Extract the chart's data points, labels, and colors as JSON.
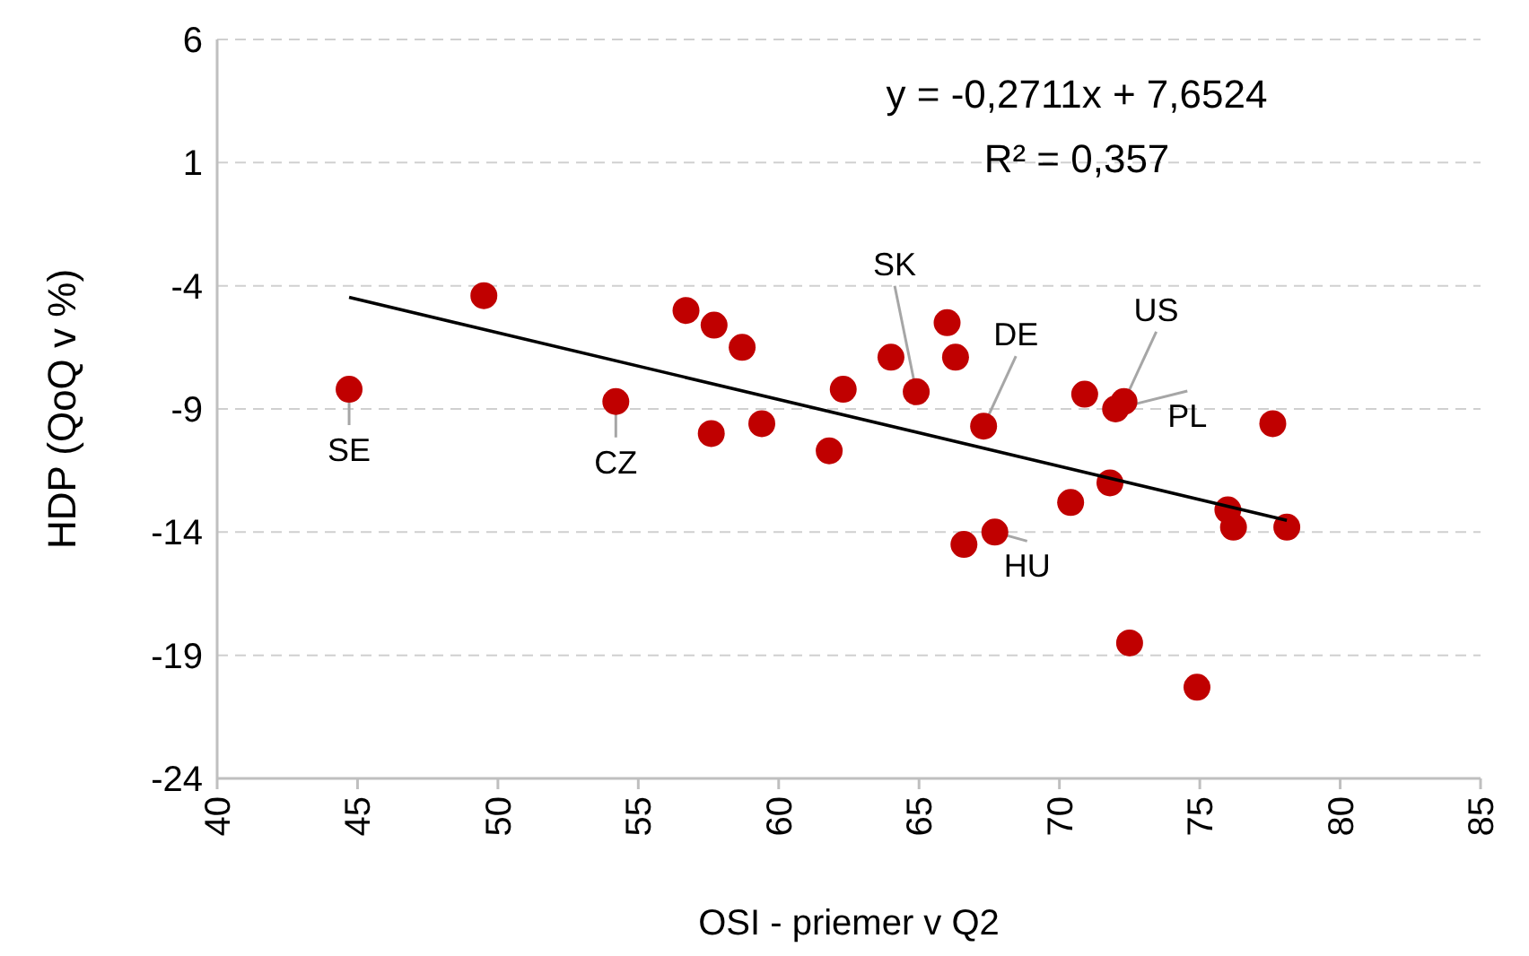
{
  "chart_data": {
    "type": "scatter",
    "xlabel": "OSI - priemer v Q2",
    "ylabel": "HDP (QoQ v %)",
    "xlim": [
      40,
      85
    ],
    "xticks": [
      40,
      45,
      50,
      55,
      60,
      65,
      70,
      75,
      80,
      85
    ],
    "ylim": [
      -24,
      6
    ],
    "yticks": [
      -24,
      -19,
      -14,
      -9,
      -4,
      1,
      6
    ],
    "grid": "y",
    "marker": "circle",
    "series": [
      {
        "color": "#c00000",
        "x": [
          44.7,
          49.5,
          54.2,
          56.7,
          57.7,
          58.7,
          57.6,
          59.4,
          61.8,
          62.3,
          64.0,
          64.9,
          66.0,
          66.3,
          67.3,
          66.6,
          67.7,
          70.4,
          70.9,
          72.3,
          72.0,
          72.5,
          74.9,
          71.8,
          77.6,
          76.0,
          76.2,
          78.1
        ],
        "values": [
          -8.2,
          -4.4,
          -8.7,
          -5.0,
          -5.6,
          -6.5,
          -10.0,
          -9.6,
          -10.7,
          -8.2,
          -6.9,
          -8.3,
          -5.5,
          -6.9,
          -9.7,
          -14.5,
          -14.0,
          -12.8,
          -8.4,
          -8.7,
          -9.0,
          -18.5,
          -20.3,
          -12.0,
          -9.6,
          -13.1,
          -13.8,
          -13.8
        ]
      },
      {
        "type": "line",
        "marker": "none",
        "color": "#000000",
        "x": [
          44.7,
          78.1
        ],
        "values": [
          -4.47,
          -13.52
        ]
      }
    ],
    "annotations": [
      "y = -0,2711x + 7,6524",
      "R² = 0,357",
      {
        "text": "SE",
        "x": 44.7,
        "y": -8.2
      },
      {
        "text": "CZ",
        "x": 54.2,
        "y": -8.7
      },
      {
        "text": "SK",
        "x": 64.9,
        "y": -8.3
      },
      {
        "text": "DE",
        "x": 67.3,
        "y": -9.7
      },
      {
        "text": "US",
        "x": 72.3,
        "y": -8.7
      },
      {
        "text": "PL",
        "x": 72.0,
        "y": -9.0
      },
      {
        "text": "HU",
        "x": 67.7,
        "y": -14.0
      }
    ]
  }
}
